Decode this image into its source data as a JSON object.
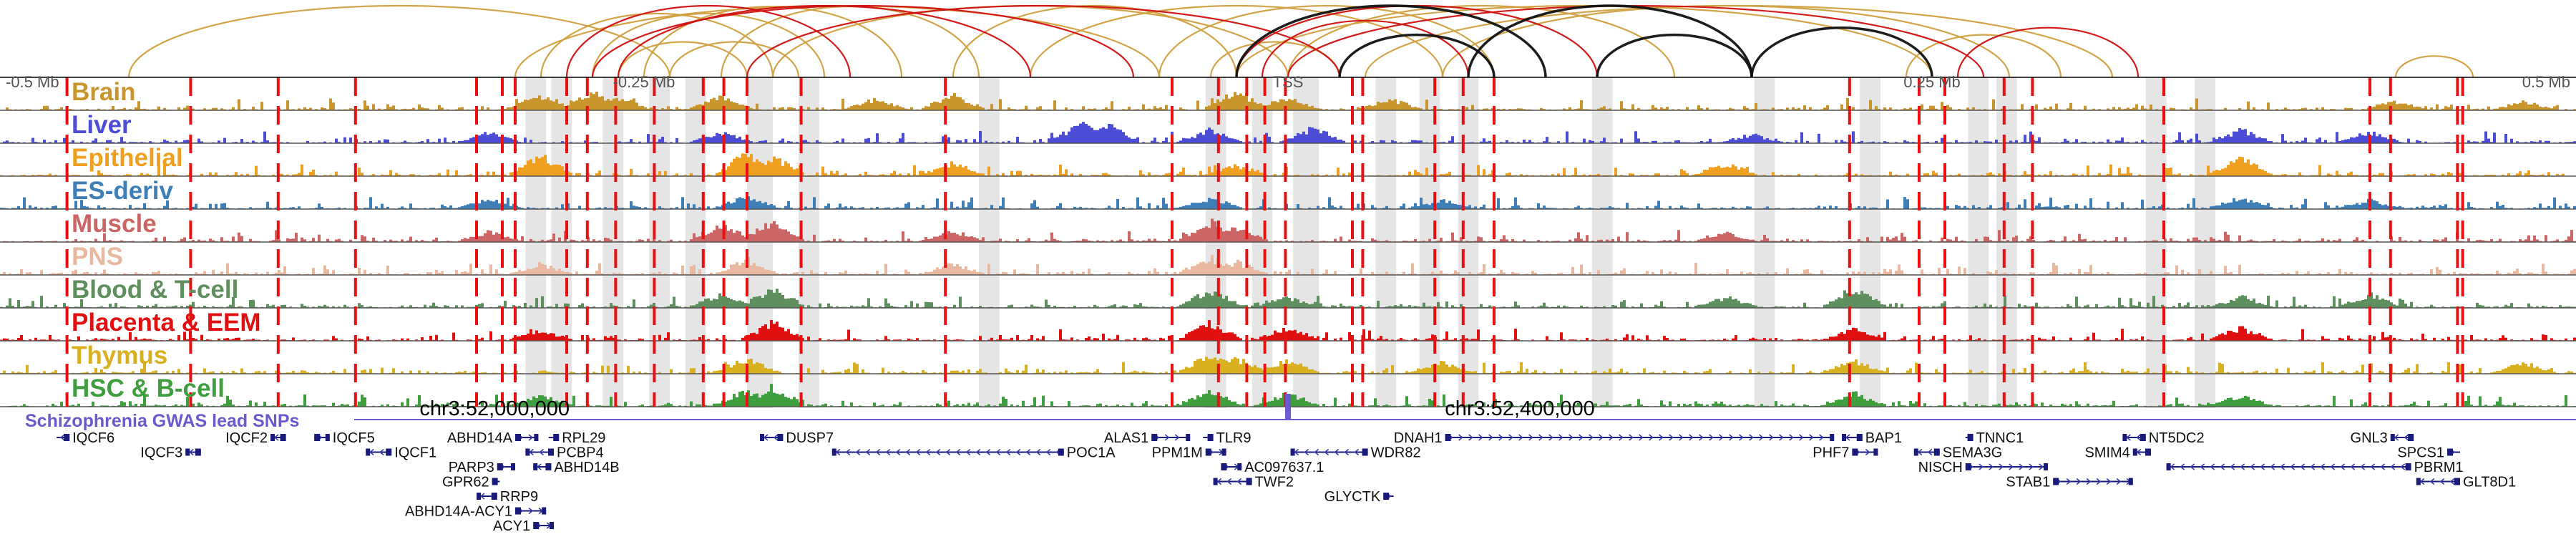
{
  "chart_data": {
    "type": "genome-browser",
    "x_axis": {
      "unit": "Mb from TSS",
      "range": [
        -0.5,
        0.5
      ],
      "ticks": [
        {
          "label": "-0.5 Mb",
          "value": -0.5
        },
        {
          "label": "-0.25 Mb",
          "value": -0.25
        },
        {
          "label": "TSS",
          "value": 0.0
        },
        {
          "label": "0.25 Mb",
          "value": 0.25
        },
        {
          "label": "0.5 Mb",
          "value": 0.5
        }
      ]
    },
    "tracks": [
      {
        "name": "Brain",
        "color": "#c9962e",
        "seed": 11,
        "peaks": [
          [
            -0.29,
            0.7
          ],
          [
            -0.27,
            0.9
          ],
          [
            -0.26,
            0.6
          ],
          [
            -0.22,
            0.6
          ],
          [
            -0.16,
            0.5
          ],
          [
            -0.13,
            0.7
          ],
          [
            -0.02,
            0.9
          ],
          [
            0.0,
            0.6
          ],
          [
            0.04,
            0.5
          ],
          [
            0.43,
            0.4
          ],
          [
            0.48,
            0.4
          ]
        ]
      },
      {
        "name": "Liver",
        "color": "#4c4cd6",
        "seed": 23,
        "peaks": [
          [
            -0.31,
            0.5
          ],
          [
            -0.22,
            0.5
          ],
          [
            -0.08,
            0.9
          ],
          [
            -0.07,
            0.8
          ],
          [
            -0.03,
            0.6
          ],
          [
            0.01,
            0.7
          ],
          [
            0.18,
            0.4
          ],
          [
            0.37,
            0.6
          ],
          [
            0.42,
            0.5
          ]
        ]
      },
      {
        "name": "Epithelial",
        "color": "#f0a020",
        "seed": 37,
        "peaks": [
          [
            -0.29,
            0.9
          ],
          [
            -0.21,
            1.0
          ],
          [
            -0.2,
            0.9
          ],
          [
            -0.13,
            0.6
          ],
          [
            -0.02,
            0.5
          ],
          [
            0.17,
            0.6
          ],
          [
            0.37,
            0.8
          ]
        ]
      },
      {
        "name": "ES-deriv",
        "color": "#3f7fb8",
        "seed": 41,
        "peaks": [
          [
            -0.31,
            0.5
          ],
          [
            -0.21,
            0.6
          ],
          [
            -0.03,
            0.5
          ],
          [
            0.06,
            0.4
          ],
          [
            0.37,
            0.5
          ],
          [
            0.42,
            0.4
          ]
        ]
      },
      {
        "name": "Muscle",
        "color": "#cc6666",
        "seed": 53,
        "peaks": [
          [
            -0.31,
            0.5
          ],
          [
            -0.22,
            0.8
          ],
          [
            -0.2,
            0.9
          ],
          [
            -0.13,
            0.5
          ],
          [
            -0.03,
            0.9
          ],
          [
            -0.02,
            0.7
          ],
          [
            0.17,
            0.4
          ]
        ]
      },
      {
        "name": "PNS",
        "color": "#e8b8a0",
        "seed": 61,
        "peaks": [
          [
            -0.29,
            0.5
          ],
          [
            -0.21,
            0.7
          ],
          [
            -0.13,
            0.5
          ],
          [
            -0.03,
            0.8
          ],
          [
            -0.02,
            0.6
          ]
        ]
      },
      {
        "name": "Blood & T-cell",
        "color": "#5f8f5f",
        "seed": 71,
        "peaks": [
          [
            -0.22,
            0.6
          ],
          [
            -0.2,
            0.9
          ],
          [
            -0.03,
            0.8
          ],
          [
            0.0,
            0.5
          ],
          [
            0.17,
            0.5
          ],
          [
            0.22,
            0.9
          ],
          [
            0.37,
            0.5
          ],
          [
            0.42,
            0.6
          ]
        ]
      },
      {
        "name": "Placenta & EEM",
        "color": "#e01010",
        "seed": 83,
        "peaks": [
          [
            -0.29,
            0.5
          ],
          [
            -0.2,
            0.8
          ],
          [
            -0.03,
            0.8
          ],
          [
            0.0,
            0.6
          ],
          [
            0.22,
            0.5
          ],
          [
            0.37,
            0.6
          ]
        ]
      },
      {
        "name": "Thymus",
        "color": "#d8b020",
        "seed": 89,
        "peaks": [
          [
            -0.21,
            0.7
          ],
          [
            -0.03,
            0.9
          ],
          [
            -0.02,
            0.7
          ],
          [
            0.0,
            0.6
          ],
          [
            0.06,
            0.5
          ],
          [
            0.22,
            0.6
          ],
          [
            0.48,
            0.5
          ]
        ]
      },
      {
        "name": "HSC & B-cell",
        "color": "#3f9f3f",
        "seed": 97,
        "peaks": [
          [
            -0.29,
            0.5
          ],
          [
            -0.21,
            0.8
          ],
          [
            -0.2,
            0.9
          ],
          [
            -0.03,
            0.7
          ],
          [
            0.0,
            0.6
          ],
          [
            0.22,
            0.6
          ],
          [
            0.37,
            0.5
          ]
        ]
      }
    ],
    "red_boundaries": [
      -0.474,
      -0.426,
      -0.392,
      -0.362,
      -0.315,
      -0.305,
      -0.3,
      -0.28,
      -0.272,
      -0.261,
      -0.246,
      -0.227,
      -0.219,
      -0.21,
      -0.189,
      -0.133,
      -0.045,
      -0.027,
      -0.016,
      -0.009,
      -0.001,
      0.025,
      0.029,
      0.057,
      0.068,
      0.08,
      0.218,
      0.245,
      0.255,
      0.278,
      0.289,
      0.34,
      0.42,
      0.428,
      0.454,
      0.456
    ],
    "gray_bands": [
      [
        -0.296,
        -0.288
      ],
      [
        -0.286,
        -0.278
      ],
      [
        -0.266,
        -0.258
      ],
      [
        -0.248,
        -0.24
      ],
      [
        -0.234,
        -0.226
      ],
      [
        -0.21,
        -0.2
      ],
      [
        -0.19,
        -0.182
      ],
      [
        -0.12,
        -0.112
      ],
      [
        -0.032,
        -0.024
      ],
      [
        -0.014,
        -0.006
      ],
      [
        0.002,
        0.012
      ],
      [
        0.034,
        0.042
      ],
      [
        0.051,
        0.059
      ],
      [
        0.066,
        0.074
      ],
      [
        0.118,
        0.126
      ],
      [
        0.181,
        0.189
      ],
      [
        0.222,
        0.23
      ],
      [
        0.264,
        0.272
      ],
      [
        0.275,
        0.283
      ],
      [
        0.333,
        0.341
      ],
      [
        0.352,
        0.36
      ]
    ],
    "arcs": [
      {
        "from": -0.45,
        "to": -0.24,
        "color": "#d0a040"
      },
      {
        "from": -0.3,
        "to": -0.05,
        "color": "#d0a040"
      },
      {
        "from": -0.29,
        "to": -0.2,
        "color": "#d0a040"
      },
      {
        "from": -0.27,
        "to": -0.18,
        "color": "#d0a040"
      },
      {
        "from": -0.26,
        "to": -0.21,
        "color": "#d0a040"
      },
      {
        "from": -0.25,
        "to": -0.15,
        "color": "#d0a040"
      },
      {
        "from": -0.24,
        "to": -0.19,
        "color": "#d0a040"
      },
      {
        "from": -0.22,
        "to": -0.12,
        "color": "#d0a040"
      },
      {
        "from": -0.2,
        "to": 0.0,
        "color": "#d0a040"
      },
      {
        "from": -0.13,
        "to": -0.02,
        "color": "#d0a040"
      },
      {
        "from": -0.1,
        "to": 0.06,
        "color": "#d0a040"
      },
      {
        "from": -0.05,
        "to": 0.08,
        "color": "#d0a040"
      },
      {
        "from": -0.03,
        "to": 0.02,
        "color": "#d0a040"
      },
      {
        "from": -0.02,
        "to": 0.25,
        "color": "#d0a040"
      },
      {
        "from": 0.0,
        "to": 0.15,
        "color": "#d0a040"
      },
      {
        "from": 0.03,
        "to": 0.32,
        "color": "#d0a040"
      },
      {
        "from": 0.06,
        "to": 0.28,
        "color": "#d0a040"
      },
      {
        "from": 0.24,
        "to": 0.3,
        "color": "#d0a040"
      },
      {
        "from": 0.43,
        "to": 0.46,
        "color": "#d0a040"
      },
      {
        "from": -0.28,
        "to": -0.17,
        "color": "#d01010"
      },
      {
        "from": -0.27,
        "to": -0.06,
        "color": "#d01010"
      },
      {
        "from": -0.26,
        "to": -0.1,
        "color": "#d01010"
      },
      {
        "from": -0.21,
        "to": 0.02,
        "color": "#d01010"
      },
      {
        "from": -0.02,
        "to": 0.12,
        "color": "#d01010"
      },
      {
        "from": -0.01,
        "to": 0.07,
        "color": "#d01010"
      },
      {
        "from": 0.0,
        "to": 0.27,
        "color": "#d01010"
      },
      {
        "from": 0.26,
        "to": 0.33,
        "color": "#d01010"
      },
      {
        "from": -0.02,
        "to": 0.1,
        "color": "#111111"
      },
      {
        "from": 0.02,
        "to": 0.08,
        "color": "#111111"
      },
      {
        "from": 0.07,
        "to": 0.18,
        "color": "#111111"
      },
      {
        "from": 0.12,
        "to": 0.18,
        "color": "#111111"
      },
      {
        "from": 0.18,
        "to": 0.25,
        "color": "#111111"
      }
    ],
    "gwas": {
      "label": "Schizophrenia GWAS lead SNPs",
      "color": "#6a5acd",
      "snp_positions": [
        0.0
      ],
      "coordinate_labels": [
        {
          "text": "chr3:52,000,000",
          "value": -0.308
        },
        {
          "text": "chr3:52,400,000",
          "value": 0.09
        }
      ]
    },
    "genes": [
      {
        "name": "IQCF6",
        "start": -0.478,
        "end": -0.473,
        "strand": "-",
        "row": 0,
        "label_side": "right"
      },
      {
        "name": "IQCF3",
        "start": -0.428,
        "end": -0.422,
        "strand": "-",
        "row": 1,
        "label_side": "left"
      },
      {
        "name": "IQCF2",
        "start": -0.395,
        "end": -0.389,
        "strand": "-",
        "row": 0,
        "label_side": "left"
      },
      {
        "name": "IQCF5",
        "start": -0.378,
        "end": -0.372,
        "strand": "+",
        "row": 0,
        "label_side": "right"
      },
      {
        "name": "IQCF1",
        "start": -0.358,
        "end": -0.348,
        "strand": "-",
        "row": 1,
        "label_side": "right"
      },
      {
        "name": "ABHD14A",
        "start": -0.3,
        "end": -0.291,
        "strand": "+",
        "row": 0,
        "label_side": "left"
      },
      {
        "name": "RPL29",
        "start": -0.287,
        "end": -0.283,
        "strand": "-",
        "row": 0,
        "label_side": "right"
      },
      {
        "name": "PCBP4",
        "start": -0.296,
        "end": -0.285,
        "strand": "-",
        "row": 1,
        "label_side": "right"
      },
      {
        "name": "PARP3",
        "start": -0.307,
        "end": -0.3,
        "strand": "+",
        "row": 2,
        "label_side": "left"
      },
      {
        "name": "ABHD14B",
        "start": -0.293,
        "end": -0.286,
        "strand": "-",
        "row": 2,
        "label_side": "right"
      },
      {
        "name": "GPR62",
        "start": -0.309,
        "end": -0.306,
        "strand": "+",
        "row": 3,
        "label_side": "left"
      },
      {
        "name": "RRP9",
        "start": -0.315,
        "end": -0.307,
        "strand": "-",
        "row": 4,
        "label_side": "right"
      },
      {
        "name": "ABHD14A-ACY1",
        "start": -0.3,
        "end": -0.288,
        "strand": "+",
        "row": 5,
        "label_side": "left"
      },
      {
        "name": "ACY1",
        "start": -0.293,
        "end": -0.285,
        "strand": "+",
        "row": 6,
        "label_side": "left"
      },
      {
        "name": "DUSP7",
        "start": -0.205,
        "end": -0.196,
        "strand": "-",
        "row": 0,
        "label_side": "right"
      },
      {
        "name": "POC1A",
        "start": -0.177,
        "end": -0.087,
        "strand": "-",
        "row": 1,
        "label_side": "right"
      },
      {
        "name": "ALAS1",
        "start": -0.053,
        "end": -0.038,
        "strand": "+",
        "row": 0,
        "label_side": "left"
      },
      {
        "name": "TLR9",
        "start": -0.033,
        "end": -0.029,
        "strand": "-",
        "row": 0,
        "label_side": "right"
      },
      {
        "name": "PPM1M",
        "start": -0.032,
        "end": -0.024,
        "strand": "+",
        "row": 1,
        "label_side": "left"
      },
      {
        "name": "WDR82",
        "start": 0.001,
        "end": 0.031,
        "strand": "-",
        "row": 1,
        "label_side": "right"
      },
      {
        "name": "DNAH1",
        "start": 0.061,
        "end": 0.212,
        "strand": "+",
        "row": 0,
        "label_side": "left"
      },
      {
        "name": "AC097637.1",
        "start": -0.026,
        "end": -0.018,
        "strand": "+",
        "row": 2,
        "label_side": "right"
      },
      {
        "name": "TWF2",
        "start": -0.029,
        "end": -0.014,
        "strand": "-",
        "row": 3,
        "label_side": "right"
      },
      {
        "name": "GLYCTK",
        "start": 0.037,
        "end": 0.041,
        "strand": "+",
        "row": 4,
        "label_side": "left"
      },
      {
        "name": "BAP1",
        "start": 0.215,
        "end": 0.223,
        "strand": "-",
        "row": 0,
        "label_side": "right"
      },
      {
        "name": "PHF7",
        "start": 0.219,
        "end": 0.229,
        "strand": "+",
        "row": 1,
        "label_side": "left"
      },
      {
        "name": "TNNC1",
        "start": 0.263,
        "end": 0.266,
        "strand": "-",
        "row": 0,
        "label_side": "right"
      },
      {
        "name": "SEMA3G",
        "start": 0.243,
        "end": 0.253,
        "strand": "-",
        "row": 1,
        "label_side": "right"
      },
      {
        "name": "NISCH",
        "start": 0.263,
        "end": 0.295,
        "strand": "+",
        "row": 2,
        "label_side": "left"
      },
      {
        "name": "STAB1",
        "start": 0.297,
        "end": 0.328,
        "strand": "+",
        "row": 3,
        "label_side": "left"
      },
      {
        "name": "NT5DC2",
        "start": 0.324,
        "end": 0.333,
        "strand": "-",
        "row": 0,
        "label_side": "right"
      },
      {
        "name": "SMIM4",
        "start": 0.328,
        "end": 0.335,
        "strand": "-",
        "row": 1,
        "label_side": "left"
      },
      {
        "name": "PBRM1",
        "start": 0.341,
        "end": 0.436,
        "strand": "-",
        "row": 2,
        "label_side": "right"
      },
      {
        "name": "GNL3",
        "start": 0.428,
        "end": 0.437,
        "strand": "-",
        "row": 0,
        "label_side": "left"
      },
      {
        "name": "SPCS1",
        "start": 0.45,
        "end": 0.455,
        "strand": "+",
        "row": 1,
        "label_side": "left"
      },
      {
        "name": "GLT8D1",
        "start": 0.438,
        "end": 0.455,
        "strand": "-",
        "row": 3,
        "label_side": "right"
      }
    ]
  }
}
